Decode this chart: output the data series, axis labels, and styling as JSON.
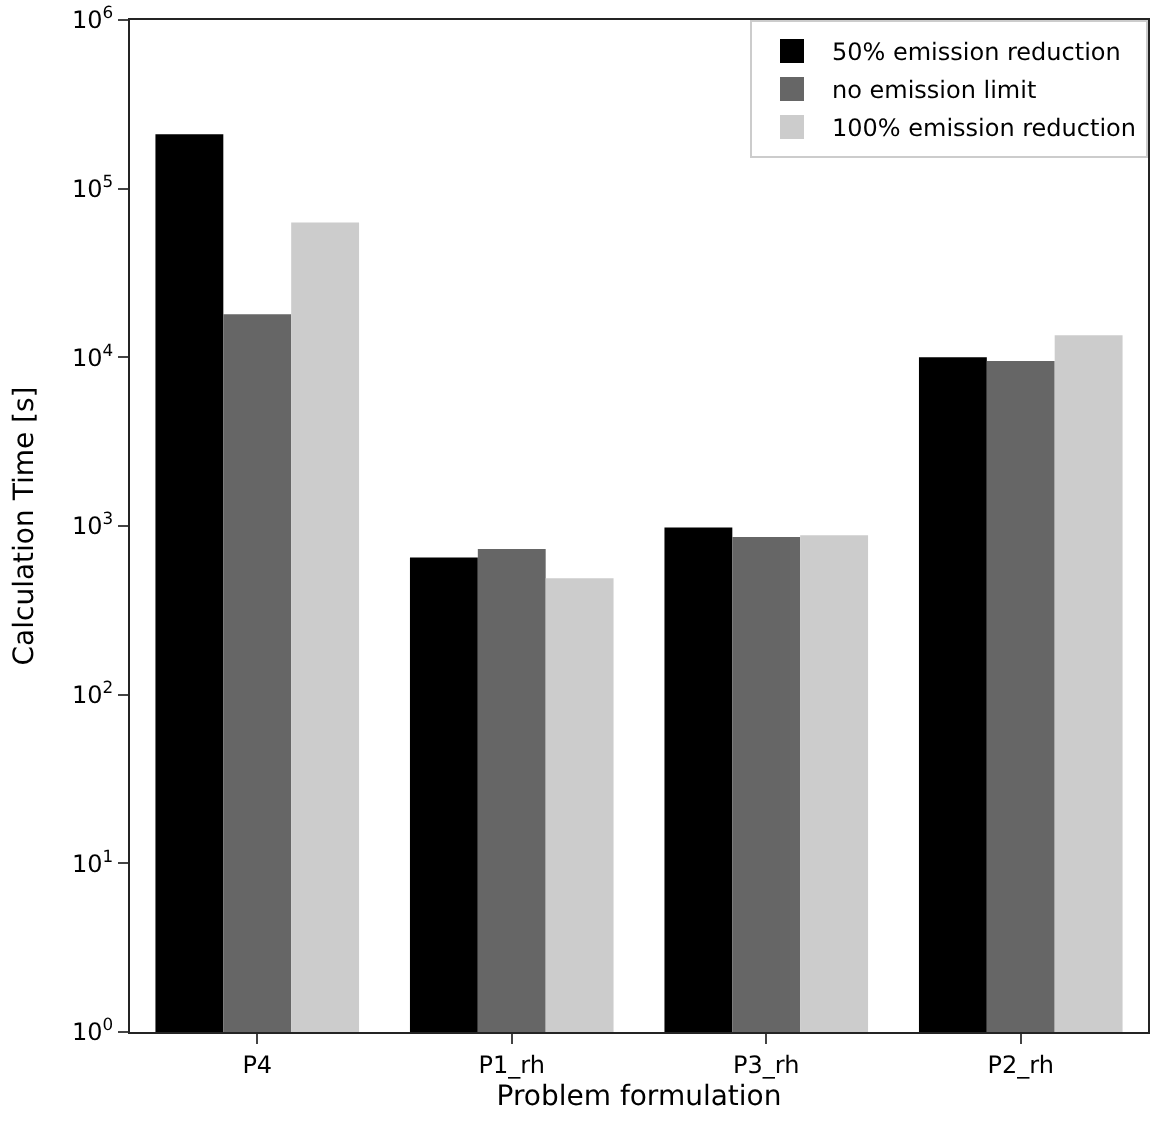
{
  "chart_data": {
    "type": "bar",
    "xlabel": "Problem formulation",
    "ylabel": "Calculation Time [s]",
    "categories": [
      "P4",
      "P1_rh",
      "P3_rh",
      "P2_rh"
    ],
    "series": [
      {
        "name": "50% emission reduction",
        "color": "#000000",
        "values": [
          210000,
          650,
          980,
          10000
        ]
      },
      {
        "name": "no emission limit",
        "color": "#666666",
        "values": [
          18000,
          730,
          860,
          9500
        ]
      },
      {
        "name": "100% emission reduction",
        "color": "#cccccc",
        "values": [
          63000,
          490,
          880,
          13500
        ]
      }
    ],
    "log": true,
    "ylim": [
      1,
      1000000
    ],
    "yticks": [
      {
        "value": 1,
        "label": "10$^{0}$"
      },
      {
        "value": 10,
        "label": "10$^{1}$"
      },
      {
        "value": 100,
        "label": "10$^{2}$"
      },
      {
        "value": 1000,
        "label": "10$^{3}$"
      },
      {
        "value": 10000,
        "label": "10$^{4}$"
      },
      {
        "value": 100000,
        "label": "10$^{5}$"
      },
      {
        "value": 1000000,
        "label": "10$^{6}$"
      }
    ],
    "grid": false,
    "legend": "top right"
  }
}
